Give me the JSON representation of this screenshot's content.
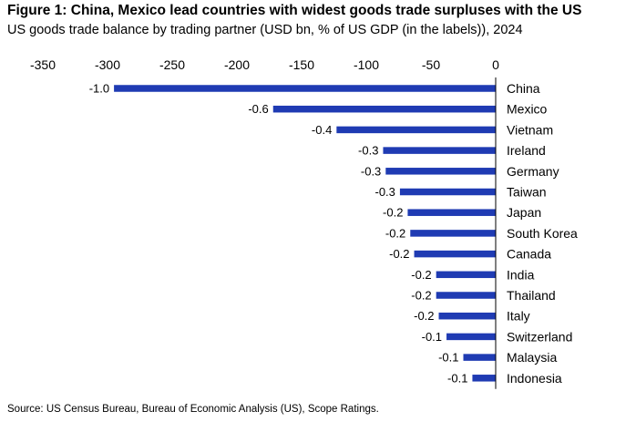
{
  "title": "Figure 1: China, Mexico lead countries with widest goods trade surpluses with the US",
  "subtitle": "US goods trade balance by trading partner (USD bn, % of US GDP (in the labels)), 2024",
  "source": "Source: US Census Bureau, Bureau of Economic Analysis (US), Scope Ratings.",
  "colors": {
    "bar": "#1F3BB3"
  },
  "chart_data": {
    "type": "bar",
    "orientation": "horizontal",
    "x_axis_position": "top",
    "xlim": [
      -350,
      0
    ],
    "xticks": [
      -350,
      -300,
      -250,
      -200,
      -150,
      -100,
      -50,
      0
    ],
    "grid": false,
    "categories": [
      "China",
      "Mexico",
      "Vietnam",
      "Ireland",
      "Germany",
      "Taiwan",
      "Japan",
      "South Korea",
      "Canada",
      "India",
      "Thailand",
      "Italy",
      "Switzerland",
      "Malaysia",
      "Indonesia"
    ],
    "values": [
      -295,
      -172,
      -123,
      -87,
      -85,
      -74,
      -68,
      -66,
      -63,
      -46,
      -46,
      -44,
      -38,
      -25,
      -18
    ],
    "labels": [
      "-1.0",
      "-0.6",
      "-0.4",
      "-0.3",
      "-0.3",
      "-0.3",
      "-0.2",
      "-0.2",
      "-0.2",
      "-0.2",
      "-0.2",
      "-0.2",
      "-0.1",
      "-0.1",
      "-0.1"
    ]
  }
}
